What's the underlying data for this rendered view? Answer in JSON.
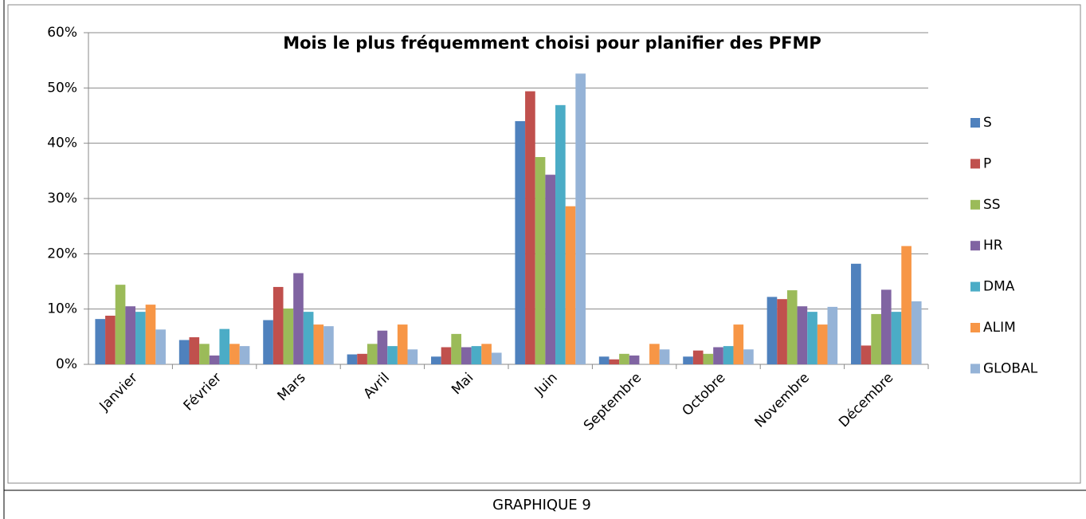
{
  "chart_data": {
    "type": "bar",
    "title": "Mois le plus fréquemment choisi pour planifier des PFMP",
    "categories": [
      "Janvier",
      "Février",
      "Mars",
      "Avril",
      "Mai",
      "Juin",
      "Septembre",
      "Octobre",
      "Novembre",
      "Décembre"
    ],
    "series": [
      {
        "name": "S",
        "color": "#4f81bd",
        "values": [
          8.2,
          4.4,
          8.0,
          1.8,
          1.4,
          44.0,
          1.4,
          1.4,
          12.2,
          18.2
        ]
      },
      {
        "name": "P",
        "color": "#c0504d",
        "values": [
          8.8,
          4.9,
          14.0,
          1.9,
          3.1,
          49.4,
          0.9,
          2.5,
          11.8,
          3.4
        ]
      },
      {
        "name": "SS",
        "color": "#9bbb59",
        "values": [
          14.4,
          3.7,
          10.1,
          3.7,
          5.5,
          37.5,
          1.9,
          1.9,
          13.4,
          9.1
        ]
      },
      {
        "name": "HR",
        "color": "#8064a2",
        "values": [
          10.5,
          1.6,
          16.5,
          6.1,
          3.1,
          34.3,
          1.6,
          3.1,
          10.5,
          13.5
        ]
      },
      {
        "name": "DMA",
        "color": "#4bacc6",
        "values": [
          9.5,
          6.4,
          9.5,
          3.3,
          3.3,
          46.9,
          0,
          3.3,
          9.5,
          9.5
        ]
      },
      {
        "name": "ALIM",
        "color": "#f79646",
        "values": [
          10.8,
          3.7,
          7.2,
          7.2,
          3.7,
          28.6,
          3.7,
          7.2,
          7.2,
          21.4
        ]
      },
      {
        "name": "GLOBAL",
        "color": "#95b3d7",
        "values": [
          6.3,
          3.3,
          6.9,
          2.7,
          2.1,
          52.6,
          2.7,
          2.7,
          10.4,
          11.4
        ]
      }
    ],
    "ylim": [
      0,
      60
    ],
    "yticks": [
      {
        "value": 0,
        "label": "0%"
      },
      {
        "value": 10,
        "label": "10%"
      },
      {
        "value": 20,
        "label": "20%"
      },
      {
        "value": 30,
        "label": "30%"
      },
      {
        "value": 40,
        "label": "40%"
      },
      {
        "value": 50,
        "label": "50%"
      },
      {
        "value": 60,
        "label": "60%"
      }
    ],
    "grid": true,
    "legend": "right"
  },
  "caption": "GRAPHIQUE 9"
}
